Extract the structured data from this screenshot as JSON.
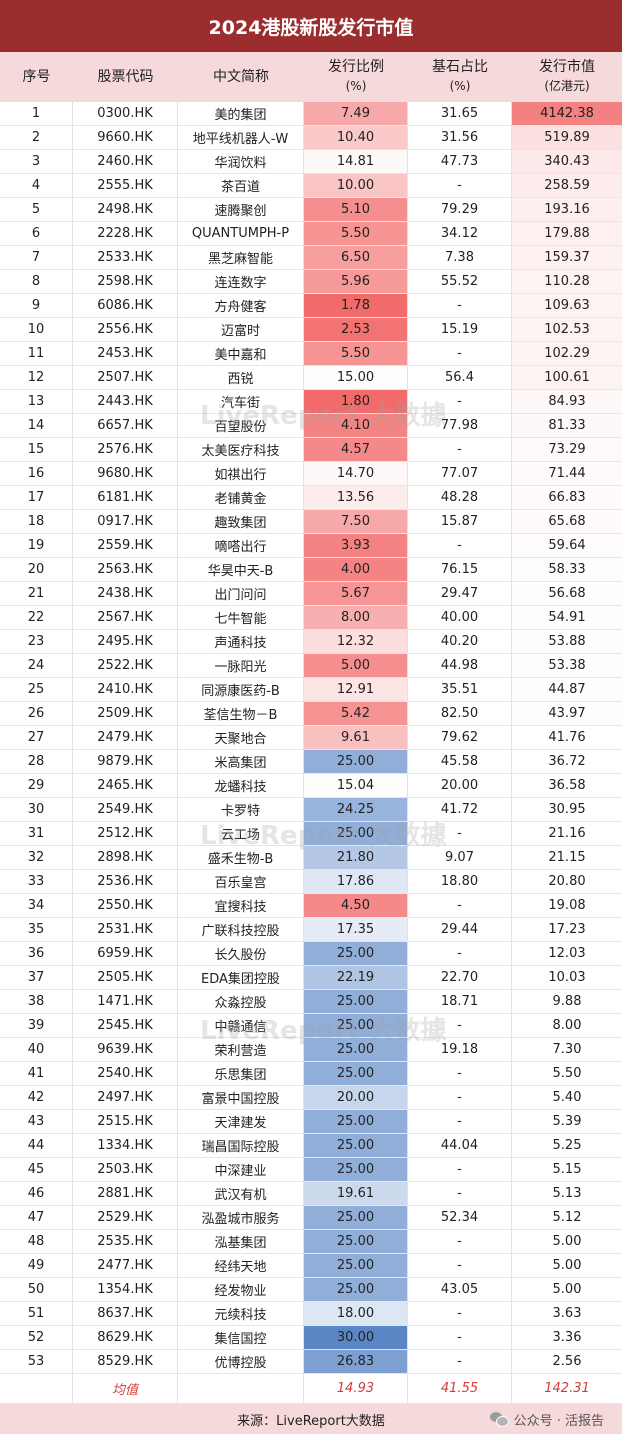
{
  "title": "2024港股新股发行市值",
  "headers": [
    {
      "l1": "序号",
      "l2": ""
    },
    {
      "l1": "股票代码",
      "l2": ""
    },
    {
      "l1": "中文简称",
      "l2": ""
    },
    {
      "l1": "发行比例",
      "l2": "(%)"
    },
    {
      "l1": "基石占比",
      "l2": "(%)"
    },
    {
      "l1": "发行市值",
      "l2": "(亿港元)"
    }
  ],
  "rows": [
    {
      "no": "1",
      "code": "0300.HK",
      "name": "美的集团",
      "ratio": "7.49",
      "corner": "31.65",
      "cap": "4142.38"
    },
    {
      "no": "2",
      "code": "9660.HK",
      "name": "地平线机器人-W",
      "ratio": "10.40",
      "corner": "31.56",
      "cap": "519.89"
    },
    {
      "no": "3",
      "code": "2460.HK",
      "name": "华润饮料",
      "ratio": "14.81",
      "corner": "47.73",
      "cap": "340.43"
    },
    {
      "no": "4",
      "code": "2555.HK",
      "name": "茶百道",
      "ratio": "10.00",
      "corner": "-",
      "cap": "258.59"
    },
    {
      "no": "5",
      "code": "2498.HK",
      "name": "速腾聚创",
      "ratio": "5.10",
      "corner": "79.29",
      "cap": "193.16"
    },
    {
      "no": "6",
      "code": "2228.HK",
      "name": "QUANTUMPH-P",
      "ratio": "5.50",
      "corner": "34.12",
      "cap": "179.88"
    },
    {
      "no": "7",
      "code": "2533.HK",
      "name": "黑芝麻智能",
      "ratio": "6.50",
      "corner": "7.38",
      "cap": "159.37"
    },
    {
      "no": "8",
      "code": "2598.HK",
      "name": "连连数字",
      "ratio": "5.96",
      "corner": "55.52",
      "cap": "110.28"
    },
    {
      "no": "9",
      "code": "6086.HK",
      "name": "方舟健客",
      "ratio": "1.78",
      "corner": "-",
      "cap": "109.63"
    },
    {
      "no": "10",
      "code": "2556.HK",
      "name": "迈富时",
      "ratio": "2.53",
      "corner": "15.19",
      "cap": "102.53"
    },
    {
      "no": "11",
      "code": "2453.HK",
      "name": "美中嘉和",
      "ratio": "5.50",
      "corner": "-",
      "cap": "102.29"
    },
    {
      "no": "12",
      "code": "2507.HK",
      "name": "西锐",
      "ratio": "15.00",
      "corner": "56.4",
      "cap": "100.61"
    },
    {
      "no": "13",
      "code": "2443.HK",
      "name": "汽车街",
      "ratio": "1.80",
      "corner": "-",
      "cap": "84.93"
    },
    {
      "no": "14",
      "code": "6657.HK",
      "name": "百望股份",
      "ratio": "4.10",
      "corner": "77.98",
      "cap": "81.33"
    },
    {
      "no": "15",
      "code": "2576.HK",
      "name": "太美医疗科技",
      "ratio": "4.57",
      "corner": "-",
      "cap": "73.29"
    },
    {
      "no": "16",
      "code": "9680.HK",
      "name": "如祺出行",
      "ratio": "14.70",
      "corner": "77.07",
      "cap": "71.44"
    },
    {
      "no": "17",
      "code": "6181.HK",
      "name": "老铺黄金",
      "ratio": "13.56",
      "corner": "48.28",
      "cap": "66.83"
    },
    {
      "no": "18",
      "code": "0917.HK",
      "name": "趣致集团",
      "ratio": "7.50",
      "corner": "15.87",
      "cap": "65.68"
    },
    {
      "no": "19",
      "code": "2559.HK",
      "name": "嘀嗒出行",
      "ratio": "3.93",
      "corner": "-",
      "cap": "59.64"
    },
    {
      "no": "20",
      "code": "2563.HK",
      "name": "华昊中天-B",
      "ratio": "4.00",
      "corner": "76.15",
      "cap": "58.33"
    },
    {
      "no": "21",
      "code": "2438.HK",
      "name": "出门问问",
      "ratio": "5.67",
      "corner": "29.47",
      "cap": "56.68"
    },
    {
      "no": "22",
      "code": "2567.HK",
      "name": "七牛智能",
      "ratio": "8.00",
      "corner": "40.00",
      "cap": "54.91"
    },
    {
      "no": "23",
      "code": "2495.HK",
      "name": "声通科技",
      "ratio": "12.32",
      "corner": "40.20",
      "cap": "53.88"
    },
    {
      "no": "24",
      "code": "2522.HK",
      "name": "一脉阳光",
      "ratio": "5.00",
      "corner": "44.98",
      "cap": "53.38"
    },
    {
      "no": "25",
      "code": "2410.HK",
      "name": "同源康医药-B",
      "ratio": "12.91",
      "corner": "35.51",
      "cap": "44.87"
    },
    {
      "no": "26",
      "code": "2509.HK",
      "name": "荃信生物－B",
      "ratio": "5.42",
      "corner": "82.50",
      "cap": "43.97"
    },
    {
      "no": "27",
      "code": "2479.HK",
      "name": "天聚地合",
      "ratio": "9.61",
      "corner": "79.62",
      "cap": "41.76"
    },
    {
      "no": "28",
      "code": "9879.HK",
      "name": "米高集团",
      "ratio": "25.00",
      "corner": "45.58",
      "cap": "36.72"
    },
    {
      "no": "29",
      "code": "2465.HK",
      "name": "龙蟠科技",
      "ratio": "15.04",
      "corner": "20.00",
      "cap": "36.58"
    },
    {
      "no": "30",
      "code": "2549.HK",
      "name": "卡罗特",
      "ratio": "24.25",
      "corner": "41.72",
      "cap": "30.95"
    },
    {
      "no": "31",
      "code": "2512.HK",
      "name": "云工场",
      "ratio": "25.00",
      "corner": "-",
      "cap": "21.16"
    },
    {
      "no": "32",
      "code": "2898.HK",
      "name": "盛禾生物-B",
      "ratio": "21.80",
      "corner": "9.07",
      "cap": "21.15"
    },
    {
      "no": "33",
      "code": "2536.HK",
      "name": "百乐皇宫",
      "ratio": "17.86",
      "corner": "18.80",
      "cap": "20.80"
    },
    {
      "no": "34",
      "code": "2550.HK",
      "name": "宜搜科技",
      "ratio": "4.50",
      "corner": "-",
      "cap": "19.08"
    },
    {
      "no": "35",
      "code": "2531.HK",
      "name": "广联科技控股",
      "ratio": "17.35",
      "corner": "29.44",
      "cap": "17.23"
    },
    {
      "no": "36",
      "code": "6959.HK",
      "name": "长久股份",
      "ratio": "25.00",
      "corner": "-",
      "cap": "12.03"
    },
    {
      "no": "37",
      "code": "2505.HK",
      "name": "EDA集团控股",
      "ratio": "22.19",
      "corner": "22.70",
      "cap": "10.03"
    },
    {
      "no": "38",
      "code": "1471.HK",
      "name": "众淼控股",
      "ratio": "25.00",
      "corner": "18.71",
      "cap": "9.88"
    },
    {
      "no": "39",
      "code": "2545.HK",
      "name": "中赣通信",
      "ratio": "25.00",
      "corner": "-",
      "cap": "8.00"
    },
    {
      "no": "40",
      "code": "9639.HK",
      "name": "荣利营造",
      "ratio": "25.00",
      "corner": "19.18",
      "cap": "7.30"
    },
    {
      "no": "41",
      "code": "2540.HK",
      "name": "乐思集团",
      "ratio": "25.00",
      "corner": "-",
      "cap": "5.50"
    },
    {
      "no": "42",
      "code": "2497.HK",
      "name": "富景中国控股",
      "ratio": "20.00",
      "corner": "-",
      "cap": "5.40"
    },
    {
      "no": "43",
      "code": "2515.HK",
      "name": "天津建发",
      "ratio": "25.00",
      "corner": "-",
      "cap": "5.39"
    },
    {
      "no": "44",
      "code": "1334.HK",
      "name": "瑞昌国际控股",
      "ratio": "25.00",
      "corner": "44.04",
      "cap": "5.25"
    },
    {
      "no": "45",
      "code": "2503.HK",
      "name": "中深建业",
      "ratio": "25.00",
      "corner": "-",
      "cap": "5.15"
    },
    {
      "no": "46",
      "code": "2881.HK",
      "name": "武汉有机",
      "ratio": "19.61",
      "corner": "-",
      "cap": "5.13"
    },
    {
      "no": "47",
      "code": "2529.HK",
      "name": "泓盈城市服务",
      "ratio": "25.00",
      "corner": "52.34",
      "cap": "5.12"
    },
    {
      "no": "48",
      "code": "2535.HK",
      "name": "泓基集团",
      "ratio": "25.00",
      "corner": "-",
      "cap": "5.00"
    },
    {
      "no": "49",
      "code": "2477.HK",
      "name": "经纬天地",
      "ratio": "25.00",
      "corner": "-",
      "cap": "5.00"
    },
    {
      "no": "50",
      "code": "1354.HK",
      "name": "经发物业",
      "ratio": "25.00",
      "corner": "43.05",
      "cap": "5.00"
    },
    {
      "no": "51",
      "code": "8637.HK",
      "name": "元续科技",
      "ratio": "18.00",
      "corner": "-",
      "cap": "3.63"
    },
    {
      "no": "52",
      "code": "8629.HK",
      "name": "集信国控",
      "ratio": "30.00",
      "corner": "-",
      "cap": "3.36"
    },
    {
      "no": "53",
      "code": "8529.HK",
      "name": "优博控股",
      "ratio": "26.83",
      "corner": "-",
      "cap": "2.56"
    }
  ],
  "average": {
    "label": "均值",
    "ratio": "14.93",
    "corner": "41.55",
    "cap": "142.31"
  },
  "footer": {
    "source": "来源：LiveReport大数据",
    "wechat": "公众号 · 活报告"
  },
  "watermark": "LiveReport 大数據",
  "colors": {
    "title_bg": "#9b2d2e",
    "header_bg": "#f6d9da",
    "low_ratio": "#f26b6b",
    "high_ratio": "#5a86c6",
    "cap_top": "#f26b6b",
    "average_text": "#d63a3a"
  }
}
